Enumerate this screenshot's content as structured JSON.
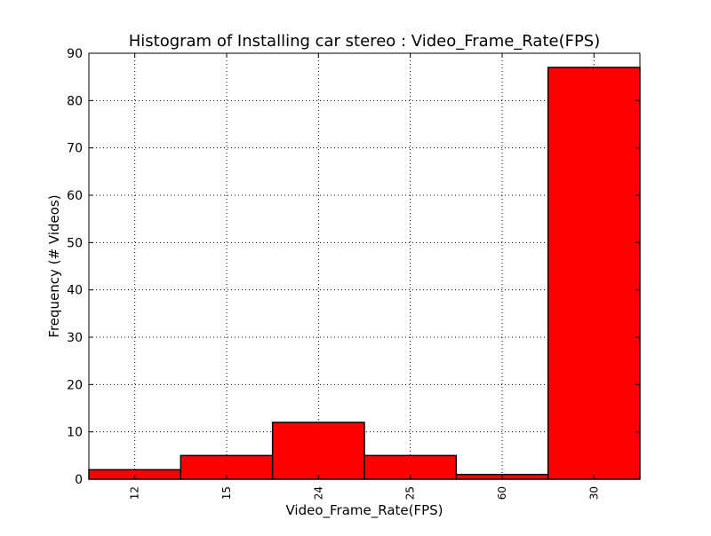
{
  "chart_data": {
    "type": "bar",
    "title": "Histogram of Installing car stereo : Video_Frame_Rate(FPS)",
    "xlabel": "Video_Frame_Rate(FPS)",
    "ylabel": "Frequency (# Videos)",
    "categories": [
      "12",
      "15",
      "24",
      "25",
      "60",
      "30"
    ],
    "values": [
      2,
      5,
      12,
      5,
      1,
      87
    ],
    "ylim": [
      0,
      90
    ],
    "yticks": [
      0,
      10,
      20,
      30,
      40,
      50,
      60,
      70,
      80,
      90
    ],
    "grid": true,
    "bar_color": "#ff0000",
    "edge_color": "#000000"
  }
}
